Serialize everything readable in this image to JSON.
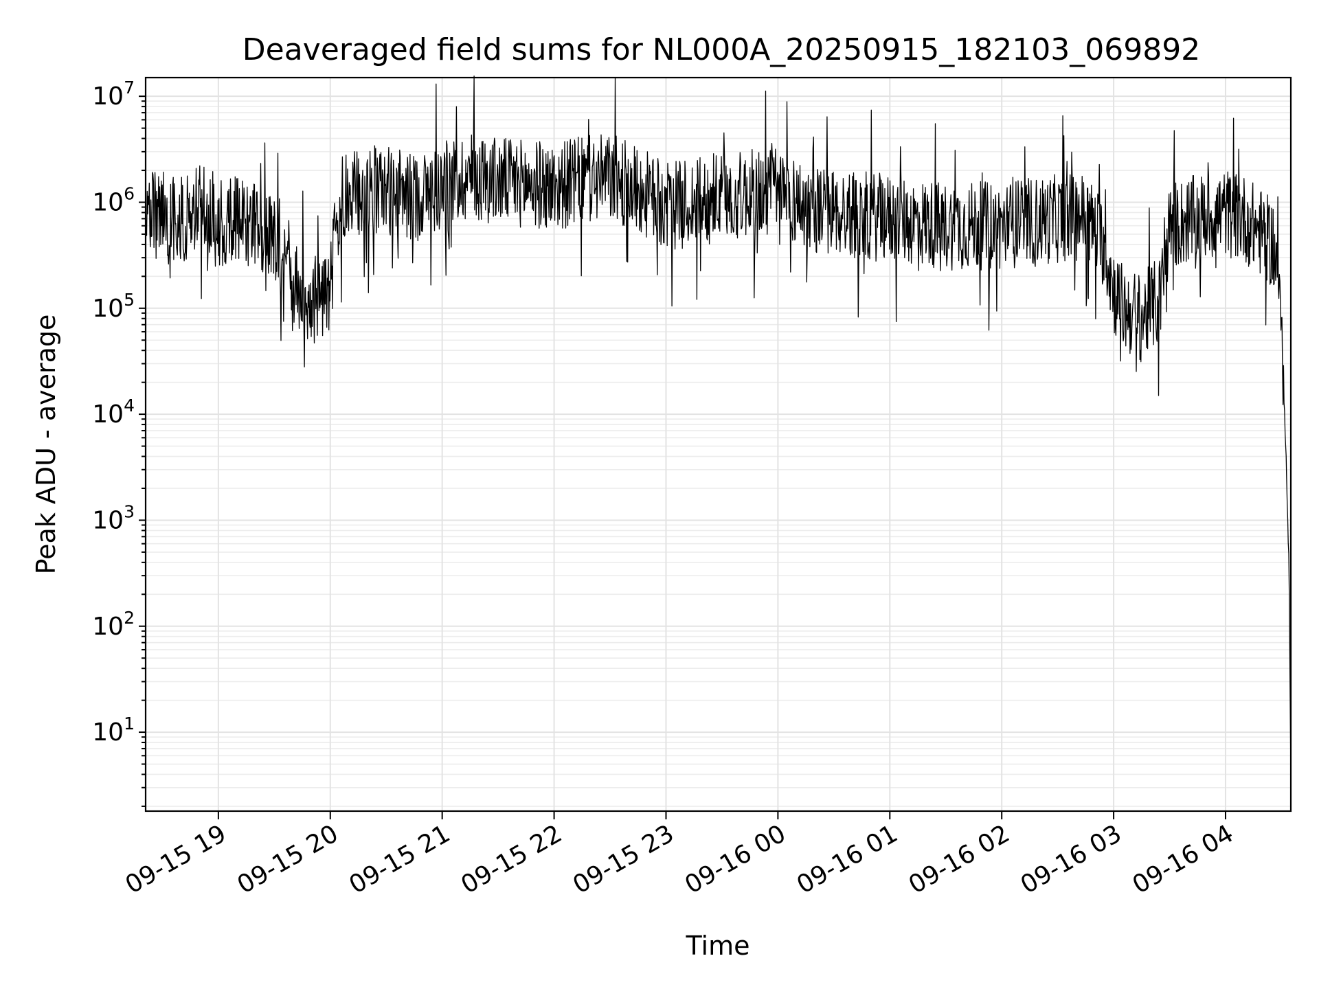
{
  "chart_data": {
    "type": "line",
    "title": "Deaveraged field sums for NL000A_20250915_182103_069892",
    "xlabel": "Time",
    "ylabel": "Peak ADU - average",
    "yscale": "log",
    "ylim": [
      1.8,
      15000000
    ],
    "xlim": [
      "2025-09-15 18:21",
      "2025-09-16 04:35"
    ],
    "grid": true,
    "grid_minor": true,
    "line_color": "#000000",
    "x_ticks": [
      {
        "at": "2025-09-15 19:00",
        "label": "09-15 19"
      },
      {
        "at": "2025-09-15 20:00",
        "label": "09-15 20"
      },
      {
        "at": "2025-09-15 21:00",
        "label": "09-15 21"
      },
      {
        "at": "2025-09-15 22:00",
        "label": "09-15 22"
      },
      {
        "at": "2025-09-15 23:00",
        "label": "09-15 23"
      },
      {
        "at": "2025-09-16 00:00",
        "label": "09-16 00"
      },
      {
        "at": "2025-09-16 01:00",
        "label": "09-16 01"
      },
      {
        "at": "2025-09-16 02:00",
        "label": "09-16 02"
      },
      {
        "at": "2025-09-16 03:00",
        "label": "09-16 03"
      },
      {
        "at": "2025-09-16 04:00",
        "label": "09-16 04"
      }
    ],
    "y_ticks": [
      {
        "value": 10,
        "base": "10",
        "exp": "1"
      },
      {
        "value": 100,
        "base": "10",
        "exp": "2"
      },
      {
        "value": 1000,
        "base": "10",
        "exp": "3"
      },
      {
        "value": 10000,
        "base": "10",
        "exp": "4"
      },
      {
        "value": 100000,
        "base": "10",
        "exp": "5"
      },
      {
        "value": 1000000,
        "base": "10",
        "exp": "6"
      },
      {
        "value": 10000000,
        "base": "10",
        "exp": "7"
      }
    ],
    "series": [
      {
        "x": [
          "2025-09-15 18:21",
          "2025-09-15 18:30",
          "2025-09-15 18:40",
          "2025-09-15 18:50",
          "2025-09-15 19:00",
          "2025-09-15 19:10",
          "2025-09-15 19:20",
          "2025-09-15 19:30",
          "2025-09-15 19:35",
          "2025-09-15 19:40",
          "2025-09-15 19:45",
          "2025-09-15 19:50",
          "2025-09-15 19:55",
          "2025-09-15 20:00",
          "2025-09-15 20:05",
          "2025-09-15 20:15",
          "2025-09-15 20:30",
          "2025-09-15 20:45",
          "2025-09-15 21:00",
          "2025-09-15 21:15",
          "2025-09-15 21:30",
          "2025-09-15 21:45",
          "2025-09-15 22:00",
          "2025-09-15 22:15",
          "2025-09-15 22:30",
          "2025-09-15 22:45",
          "2025-09-15 23:00",
          "2025-09-15 23:15",
          "2025-09-15 23:30",
          "2025-09-15 23:45",
          "2025-09-16 00:00",
          "2025-09-16 00:15",
          "2025-09-16 00:30",
          "2025-09-16 00:45",
          "2025-09-16 01:00",
          "2025-09-16 01:15",
          "2025-09-16 01:30",
          "2025-09-16 01:45",
          "2025-09-16 02:00",
          "2025-09-16 02:15",
          "2025-09-16 02:30",
          "2025-09-16 02:45",
          "2025-09-16 02:55",
          "2025-09-16 03:00",
          "2025-09-16 03:05",
          "2025-09-16 03:10",
          "2025-09-16 03:15",
          "2025-09-16 03:20",
          "2025-09-16 03:25",
          "2025-09-16 03:30",
          "2025-09-16 03:45",
          "2025-09-16 04:00",
          "2025-09-16 04:10",
          "2025-09-16 04:20",
          "2025-09-16 04:25",
          "2025-09-16 04:28",
          "2025-09-16 04:30",
          "2025-09-16 04:32",
          "2025-09-16 04:33",
          "2025-09-16 04:34",
          "2025-09-16 04:35"
        ],
        "y": [
          700000,
          800000,
          650000,
          900000,
          600000,
          750000,
          550000,
          450000,
          400000,
          180000,
          130000,
          120000,
          130000,
          160000,
          1000000,
          1200000,
          1300000,
          1100000,
          1400000,
          1800000,
          1600000,
          1500000,
          1400000,
          1600000,
          1700000,
          1300000,
          900000,
          1000000,
          1100000,
          1200000,
          1300000,
          900000,
          800000,
          750000,
          700000,
          650000,
          600000,
          600000,
          600000,
          650000,
          700000,
          750000,
          400000,
          150000,
          100000,
          90000,
          80000,
          100000,
          120000,
          600000,
          700000,
          800000,
          700000,
          500000,
          400000,
          250000,
          60000,
          8000,
          1500,
          400,
          4
        ]
      }
    ]
  }
}
